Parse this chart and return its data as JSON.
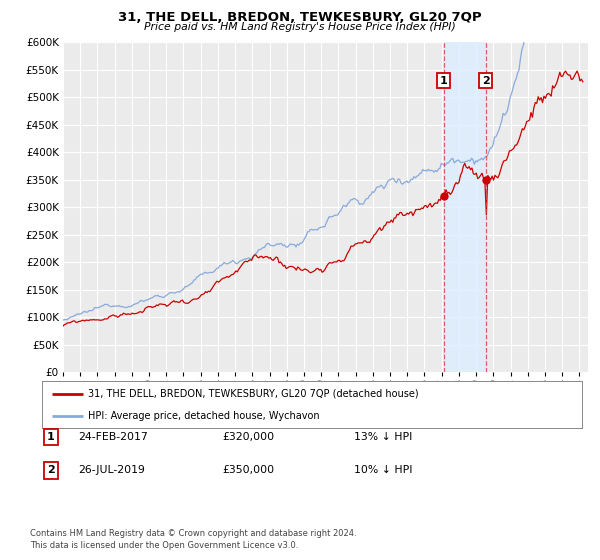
{
  "title": "31, THE DELL, BREDON, TEWKESBURY, GL20 7QP",
  "subtitle": "Price paid vs. HM Land Registry's House Price Index (HPI)",
  "background_color": "#ffffff",
  "plot_bg_color": "#ebebeb",
  "grid_color": "#ffffff",
  "ylim": [
    0,
    600000
  ],
  "yticks": [
    0,
    50000,
    100000,
    150000,
    200000,
    250000,
    300000,
    350000,
    400000,
    450000,
    500000,
    550000,
    600000
  ],
  "xlim_start": 1995.0,
  "xlim_end": 2025.5,
  "xticks": [
    1995,
    1996,
    1997,
    1998,
    1999,
    2000,
    2001,
    2002,
    2003,
    2004,
    2005,
    2006,
    2007,
    2008,
    2009,
    2010,
    2011,
    2012,
    2013,
    2014,
    2015,
    2016,
    2017,
    2018,
    2019,
    2020,
    2021,
    2022,
    2023,
    2024,
    2025
  ],
  "sale1_x": 2017.12,
  "sale1_y": 320000,
  "sale1_label": "1",
  "sale1_date": "24-FEB-2017",
  "sale1_price": "£320,000",
  "sale1_hpi": "13% ↓ HPI",
  "sale2_x": 2019.56,
  "sale2_y": 350000,
  "sale2_label": "2",
  "sale2_date": "26-JUL-2019",
  "sale2_price": "£350,000",
  "sale2_hpi": "10% ↓ HPI",
  "sale_dot_color": "#cc0000",
  "sale_dot_size": 6,
  "vline_color": "#dd4444",
  "vline_shade_color": "#ddeeff",
  "hpi_line_color": "#88aadd",
  "price_line_color": "#cc0000",
  "legend_label1": "31, THE DELL, BREDON, TEWKESBURY, GL20 7QP (detached house)",
  "legend_label2": "HPI: Average price, detached house, Wychavon",
  "footer1": "Contains HM Land Registry data © Crown copyright and database right 2024.",
  "footer2": "This data is licensed under the Open Government Licence v3.0."
}
